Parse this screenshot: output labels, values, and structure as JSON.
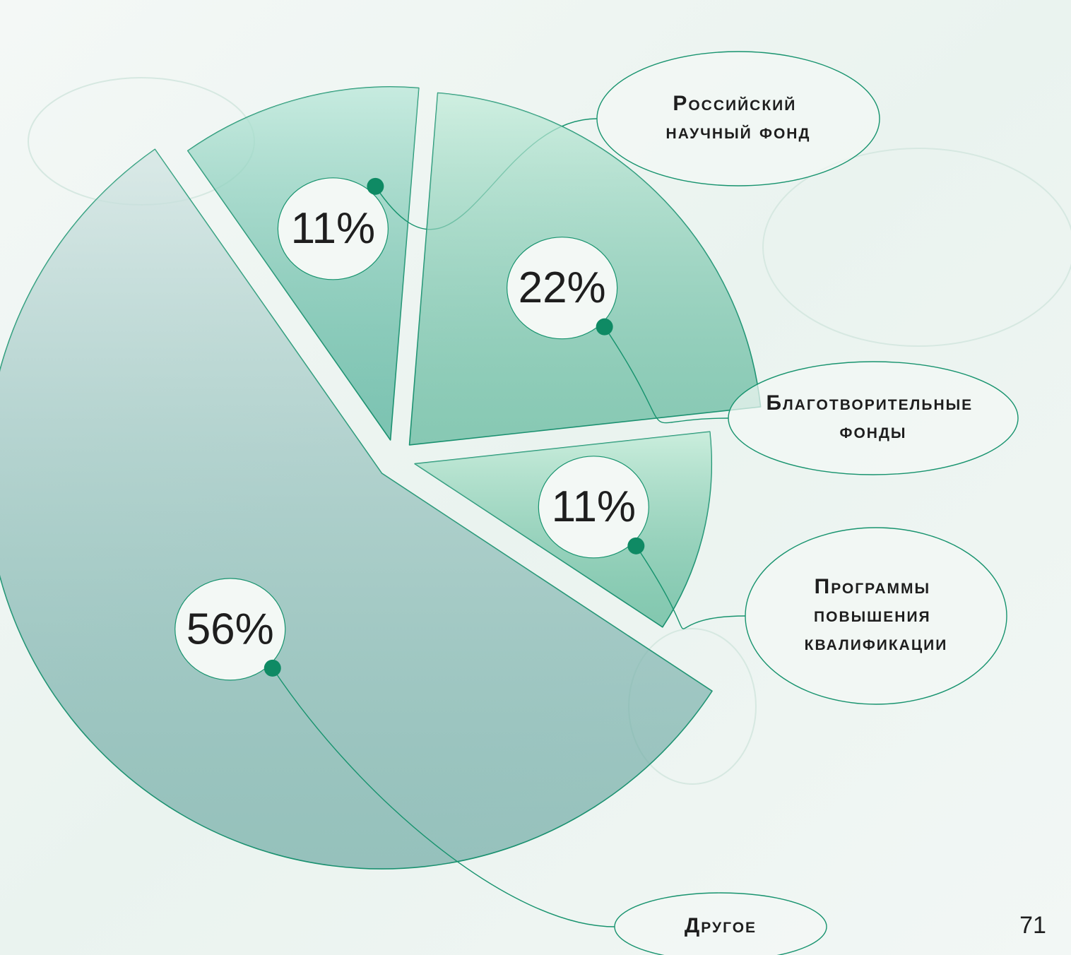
{
  "chart_data": {
    "type": "pie",
    "categories": [
      "Российский научный фонд",
      "Благотворительные фонды",
      "Программы повышения квалификации",
      "Другое"
    ],
    "values": [
      11,
      22,
      11,
      56
    ],
    "value_labels": [
      "11%",
      "22%",
      "11%",
      "56%"
    ],
    "colors": [
      "#52c4a0",
      "#6ed1a6",
      "#63cf9b",
      "#8fbfba"
    ]
  },
  "page_number": "71"
}
